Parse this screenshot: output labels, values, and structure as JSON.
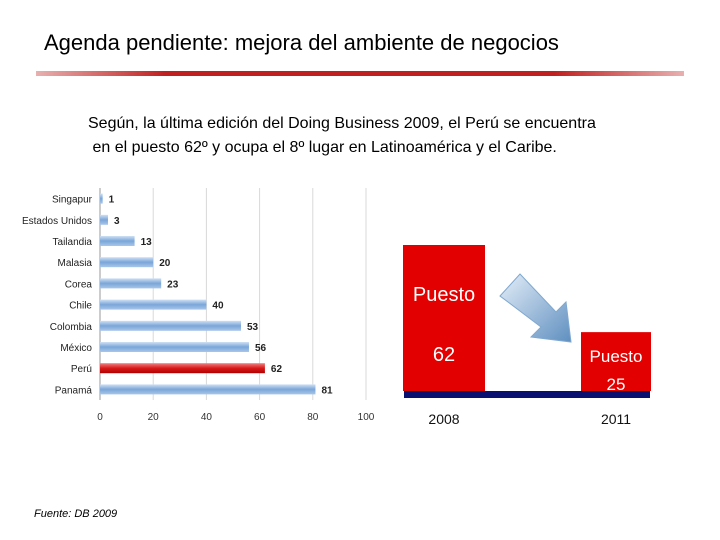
{
  "header": {
    "title": "Agenda pendiente: mejora del ambiente de negocios",
    "subtitle_line1": "Según, la última edición del Doing Business 2009, el Perú se encuentra",
    "subtitle_line2": " en el puesto 62º y ocupa el 8º lugar en Latinoamérica y el Caribe."
  },
  "footer": {
    "source": "Fuente: DB 2009"
  },
  "colors": {
    "accent": "#c00000",
    "bar_blue": "#7aa6d8",
    "bar_red": "#d91a1a",
    "navy": "#0a1070",
    "arrow": "#7fa8d0"
  },
  "chart_data": [
    {
      "type": "bar",
      "orientation": "horizontal",
      "title": "",
      "categories": [
        "Singapur",
        "Estados Unidos",
        "Tailandia",
        "Malasia",
        "Corea",
        "Chile",
        "Colombia",
        "México",
        "Perú",
        "Panamá"
      ],
      "values": [
        1,
        3,
        13,
        20,
        23,
        40,
        53,
        56,
        62,
        81
      ],
      "highlight": "Perú",
      "xlim": [
        0,
        100
      ],
      "xticks": [
        "0",
        "20",
        "40",
        "60",
        "80",
        "100"
      ],
      "grid": true
    },
    {
      "type": "bar",
      "title": "",
      "categories": [
        "2008",
        "2011"
      ],
      "values": [
        62,
        25
      ],
      "bar_labels": [
        [
          "Puesto",
          "62"
        ],
        [
          "Puesto",
          "25"
        ]
      ]
    }
  ]
}
